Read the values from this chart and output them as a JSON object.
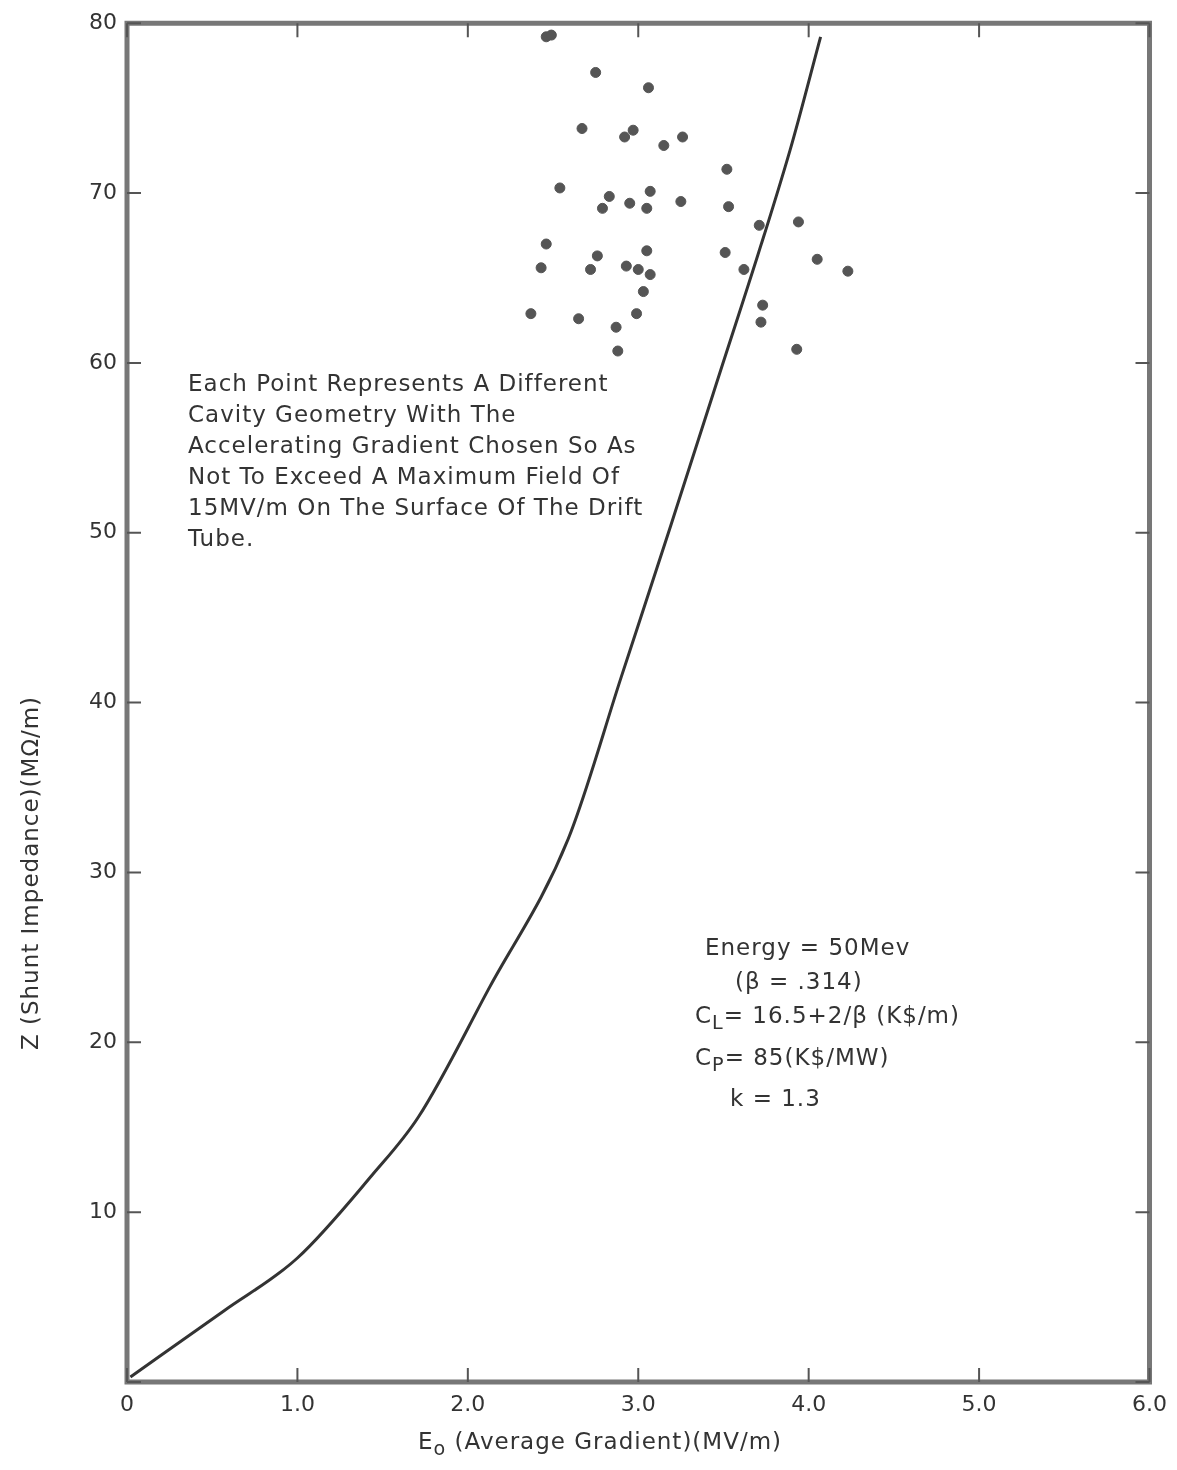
{
  "chart_data": {
    "type": "scatter",
    "xlabel": "E$_{o}$ (Average Gradient)(MV/m)",
    "ylabel": "Z (Shunt Impedance)(MΩ/m)",
    "xlim": [
      0,
      6
    ],
    "ylim": [
      0,
      80
    ],
    "xticks": [
      {
        "value": 0,
        "label": "0"
      },
      {
        "value": 1,
        "label": "1.0"
      },
      {
        "value": 2,
        "label": "2.0"
      },
      {
        "value": 3,
        "label": "3.0"
      },
      {
        "value": 4,
        "label": "4.0"
      },
      {
        "value": 5,
        "label": "5.0"
      },
      {
        "value": 6,
        "label": "6.0"
      }
    ],
    "yticks": [
      {
        "value": 0,
        "label": null
      },
      10,
      20,
      30,
      40,
      50,
      60,
      70,
      80
    ],
    "grid": false,
    "legend": false,
    "series": [
      {
        "type": "scatter",
        "marker": "circle",
        "color": "#555555",
        "x": [
          2.46,
          2.49,
          2.75,
          3.06,
          2.67,
          2.97,
          2.92,
          3.26,
          3.15,
          3.52,
          2.54,
          3.07,
          2.83,
          3.25,
          2.95,
          2.79,
          3.05,
          3.53,
          3.71,
          3.94,
          2.46,
          3.05,
          3.51,
          2.76,
          4.05,
          2.43,
          2.72,
          2.93,
          3.0,
          3.07,
          3.62,
          4.23,
          3.03,
          3.73,
          2.37,
          2.65,
          2.99,
          3.72,
          2.87,
          2.88,
          3.93
        ],
        "values": [
          79.2,
          79.3,
          77.1,
          76.2,
          73.8,
          73.7,
          73.3,
          73.3,
          72.8,
          71.4,
          70.3,
          70.1,
          69.8,
          69.5,
          69.4,
          69.1,
          69.1,
          69.2,
          68.1,
          68.3,
          67.0,
          66.6,
          66.5,
          66.3,
          66.1,
          65.6,
          65.5,
          65.7,
          65.5,
          65.2,
          65.5,
          65.4,
          64.2,
          63.4,
          62.9,
          62.6,
          62.9,
          62.4,
          62.1,
          60.7,
          60.8
        ]
      },
      {
        "type": "line",
        "marker": "none",
        "color": "#333333",
        "x": [
          0.02,
          0.57,
          1.0,
          1.44,
          1.71,
          2.12,
          2.59,
          2.9,
          3.19,
          3.44,
          3.89,
          4.07
        ],
        "values": [
          0.3,
          4.2,
          7.3,
          12.2,
          15.6,
          23.1,
          32.0,
          41.5,
          50.4,
          58.2,
          72.5,
          79.2
        ]
      }
    ],
    "annotations": [
      "Each Point Represents A Different Cavity Geometry With The Accelerating Gradient Chosen So As Not To Exceed A Maximum Field Of 15MV/m On The Surface Of The Drift Tube.",
      "Energy = 50Mev",
      "(β = .314)",
      "C$_{L}$= 16.5+2/β (K$/m)",
      "C$_{P}$= 85(K$/MW)",
      "k = 1.3"
    ]
  }
}
